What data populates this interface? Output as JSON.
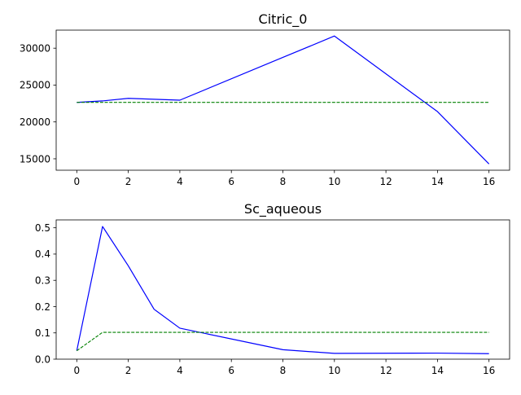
{
  "chart_data": [
    {
      "type": "line",
      "title": "Citric_0",
      "xlabel": "",
      "ylabel": "",
      "xlim": [
        -0.8,
        16.8
      ],
      "ylim": [
        13450,
        32450
      ],
      "x_ticks": [
        0,
        2,
        4,
        6,
        8,
        10,
        12,
        14,
        16
      ],
      "x_tick_labels": [
        "0",
        "2",
        "4",
        "6",
        "8",
        "10",
        "12",
        "14",
        "16"
      ],
      "y_ticks": [
        15000,
        20000,
        25000,
        30000
      ],
      "y_tick_labels": [
        "15000",
        "20000",
        "25000",
        "30000"
      ],
      "grid": false,
      "series": [
        {
          "color": "#0000ff",
          "style": "solid",
          "x": [
            0,
            1,
            2,
            4,
            8,
            10,
            14,
            16
          ],
          "values": [
            22650,
            22850,
            23200,
            22950,
            28750,
            31650,
            21400,
            14300
          ]
        },
        {
          "color": "#008000",
          "style": "dashed",
          "x": [
            0,
            16
          ],
          "values": [
            22650,
            22650
          ]
        }
      ]
    },
    {
      "type": "line",
      "title": "Sc_aqueous",
      "xlabel": "",
      "ylabel": "",
      "xlim": [
        -0.8,
        16.8
      ],
      "ylim": [
        0,
        0.53
      ],
      "x_ticks": [
        0,
        2,
        4,
        6,
        8,
        10,
        12,
        14,
        16
      ],
      "x_tick_labels": [
        "0",
        "2",
        "4",
        "6",
        "8",
        "10",
        "12",
        "14",
        "16"
      ],
      "y_ticks": [
        0.0,
        0.1,
        0.2,
        0.3,
        0.4,
        0.5
      ],
      "y_tick_labels": [
        "0.0",
        "0.1",
        "0.2",
        "0.3",
        "0.4",
        "0.5"
      ],
      "grid": false,
      "series": [
        {
          "color": "#0000ff",
          "style": "solid",
          "x": [
            0,
            1,
            2,
            3,
            4,
            8,
            10,
            14,
            16
          ],
          "values": [
            0.032,
            0.505,
            0.355,
            0.19,
            0.118,
            0.036,
            0.022,
            0.023,
            0.021
          ]
        },
        {
          "color": "#008000",
          "style": "dashed",
          "x": [
            0,
            1,
            16
          ],
          "values": [
            0.032,
            0.102,
            0.102
          ]
        }
      ]
    }
  ]
}
